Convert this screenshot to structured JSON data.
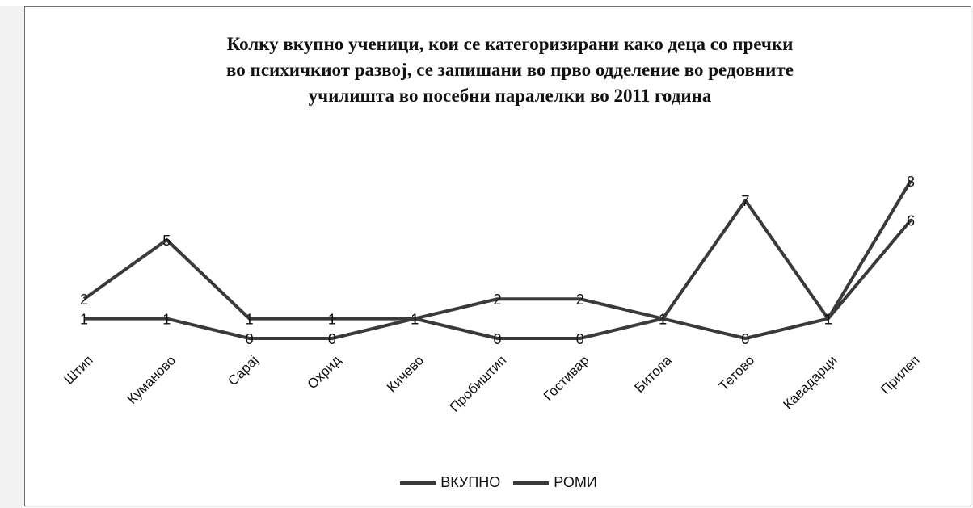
{
  "chart_data": {
    "type": "line",
    "title_lines": [
      "Колку вкупно ученици, кои се категоризирани како деца со пречки",
      "во психичкиот развој, се запишани во прво одделение во редовните",
      "училишта во посебни паралелки во 2011 година"
    ],
    "categories": [
      "Штип",
      "Куманово",
      "Сарај",
      "Охрид",
      "Кичево",
      "Пробиштип",
      "Гостивар",
      "Битола",
      "Тетово",
      "Кавадарци",
      "Прилеп"
    ],
    "series": [
      {
        "name": "ВКУПНО",
        "values": [
          2,
          5,
          1,
          1,
          1,
          2,
          2,
          1,
          7,
          1,
          8
        ],
        "color": "#3a3a3a"
      },
      {
        "name": "РОМИ",
        "values": [
          1,
          1,
          0,
          0,
          1,
          0,
          0,
          1,
          0,
          1,
          6
        ],
        "color": "#3a3a3a"
      }
    ],
    "xlabel": "",
    "ylabel": "",
    "ylim": [
      0,
      8
    ],
    "grid": false,
    "legend_position": "bottom"
  }
}
